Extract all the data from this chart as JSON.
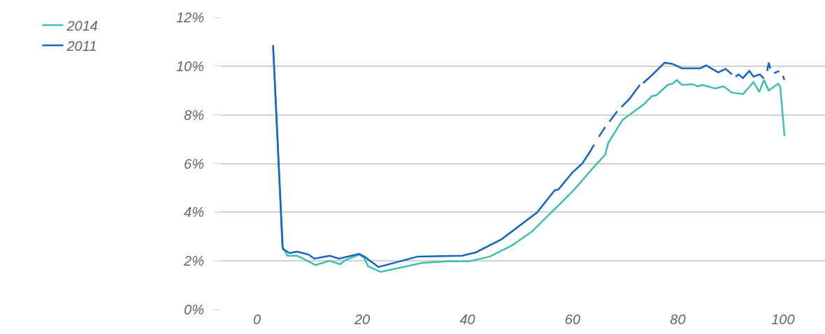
{
  "chart_data": {
    "type": "line",
    "xlim": [
      -7,
      108
    ],
    "xticks": [
      0,
      20,
      40,
      60,
      80,
      100
    ],
    "ylim": [
      0,
      12
    ],
    "yticks": [
      {
        "value": 0,
        "label": "0%"
      },
      {
        "value": 2,
        "label": "2%"
      },
      {
        "value": 4,
        "label": "4%"
      },
      {
        "value": 6,
        "label": "6%"
      },
      {
        "value": 8,
        "label": "8%"
      },
      {
        "value": 10,
        "label": "10%"
      },
      {
        "value": 12,
        "label": "12%"
      }
    ],
    "grid": "y",
    "legend": "top left",
    "line_style": "solid",
    "marker": "none",
    "series": [
      {
        "name": "2014",
        "color": "#3dbfad",
        "x": [
          3.05,
          4.8,
          5.8,
          7.6,
          8.5,
          11.1,
          13.8,
          15.8,
          16.8,
          19.4,
          20.4,
          21.1,
          23.5,
          31.4,
          36.3,
          40.3,
          44.3,
          48.5,
          52.3,
          56.2,
          60.2,
          64.6,
          66.2,
          66.8,
          69.5,
          70.8,
          73.5,
          75.1,
          75.9,
          78.1,
          79,
          79.8,
          80.8,
          82.8,
          83.8,
          84.7,
          87.1,
          88.7,
          90.3,
          92.4,
          94.4,
          95.5,
          96.4,
          97.3,
          99.1,
          99.5,
          100.3
        ],
        "values": [
          10.86,
          2.6,
          2.21,
          2.21,
          2.12,
          1.83,
          2.0,
          1.86,
          2.03,
          2.26,
          2.12,
          1.78,
          1.55,
          1.92,
          1.98,
          1.98,
          2.18,
          2.64,
          3.21,
          4.04,
          4.9,
          5.99,
          6.36,
          6.85,
          7.79,
          8.0,
          8.42,
          8.77,
          8.8,
          9.23,
          9.28,
          9.43,
          9.23,
          9.26,
          9.17,
          9.23,
          9.08,
          9.17,
          8.91,
          8.85,
          9.34,
          8.94,
          9.43,
          9.0,
          9.28,
          9.14,
          7.13
        ]
      },
      {
        "name": "2011",
        "color": "#1565c0",
        "x": [
          3.05,
          4.9,
          6.2,
          7.6,
          9.8,
          10.9,
          13.8,
          15.6,
          19.4,
          20.4,
          23.1,
          30.6,
          39,
          41.6,
          46.5,
          53.2,
          56.6,
          57.3,
          60,
          61.8,
          63.3,
          64.1,
          64.6,
          65.0,
          66.2,
          66.6,
          67.0,
          68.5,
          68.9,
          69.3,
          70.8,
          72.8,
          73.1,
          73.4,
          75.1,
          77.5,
          79,
          80.8,
          84.3,
          85.4,
          87.7,
          89.1,
          90.3,
          90.6,
          91,
          91.6,
          92.4,
          93.6,
          94.4,
          95.6,
          96.4,
          96.8,
          97.0,
          97.3,
          97.6,
          97.8,
          98.3,
          99.3,
          99.8,
          100.0,
          100.3
        ],
        "values": [
          10.86,
          2.49,
          2.32,
          2.38,
          2.26,
          2.09,
          2.21,
          2.09,
          2.29,
          2.18,
          1.75,
          2.18,
          2.21,
          2.35,
          2.89,
          3.98,
          4.9,
          4.93,
          5.64,
          5.99,
          6.48,
          6.78,
          null,
          7.1,
          7.5,
          null,
          7.72,
          8.15,
          null,
          8.32,
          8.65,
          9.23,
          null,
          9.3,
          9.63,
          10.14,
          10.09,
          9.91,
          9.91,
          10.03,
          9.74,
          9.89,
          9.66,
          null,
          9.57,
          9.66,
          9.51,
          9.8,
          9.57,
          9.66,
          9.48,
          null,
          9.8,
          10.14,
          9.9,
          null,
          9.71,
          9.8,
          null,
          9.6,
          9.43
        ]
      }
    ]
  }
}
